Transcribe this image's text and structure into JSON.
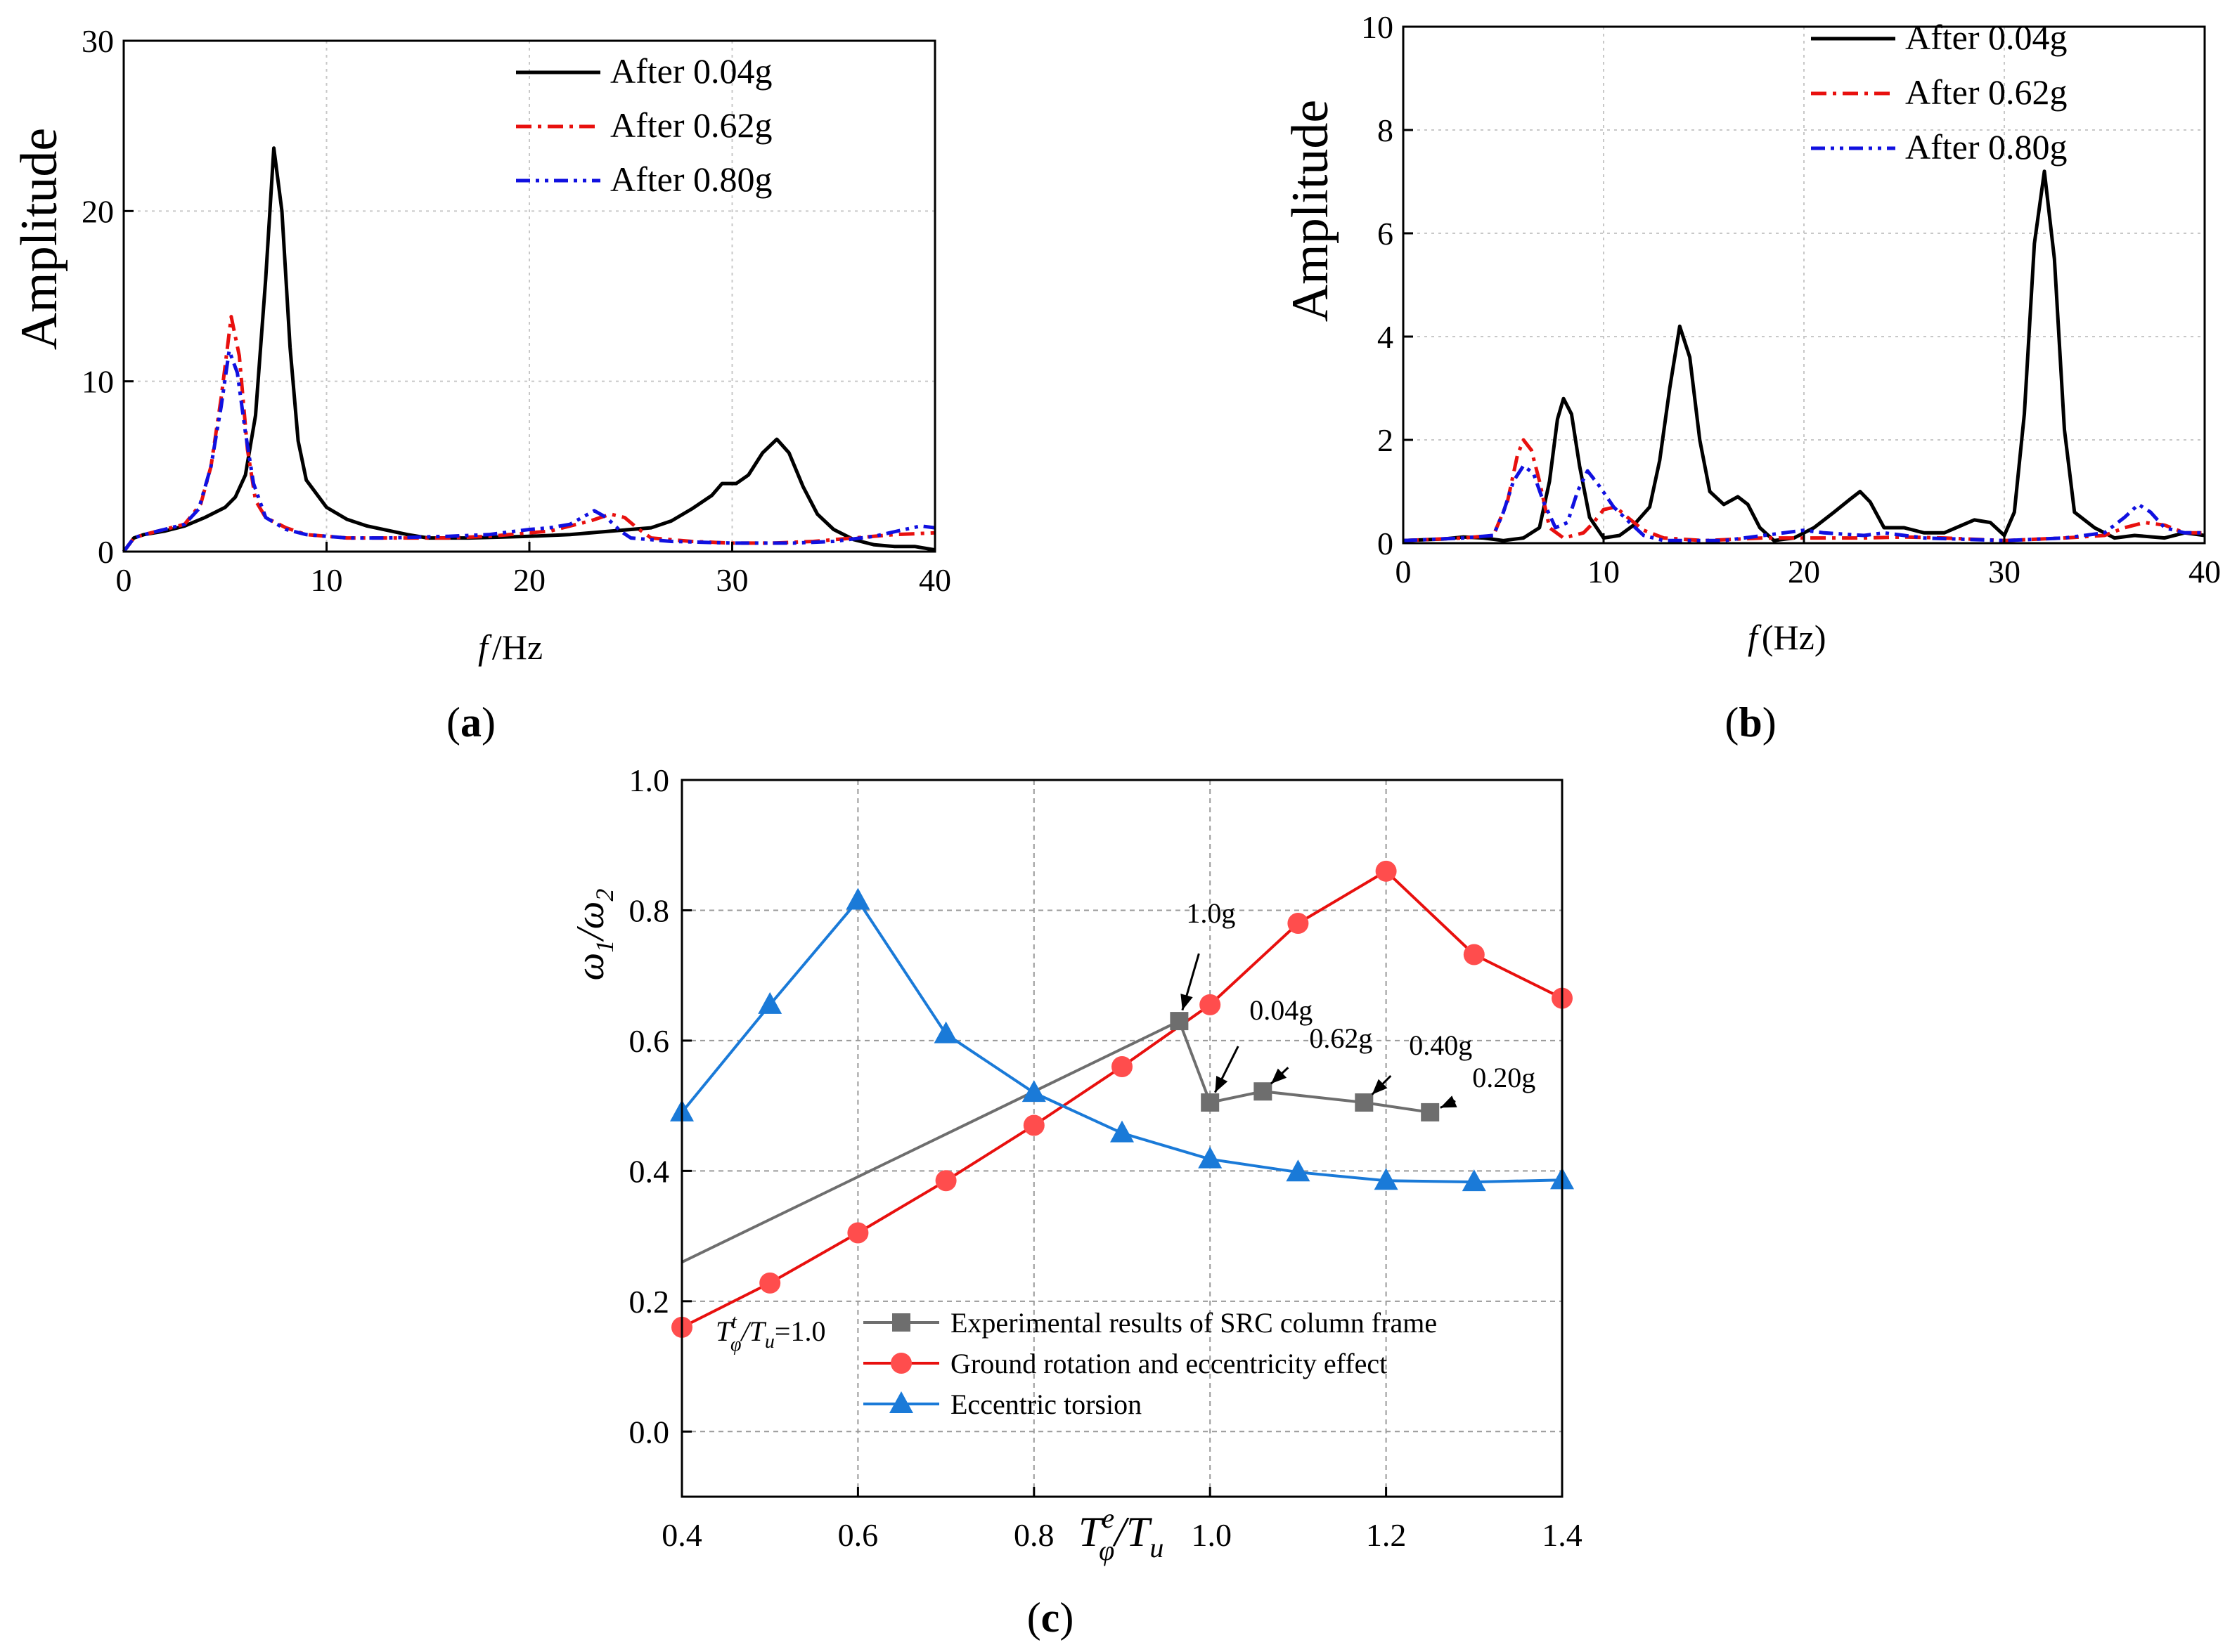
{
  "colors": {
    "black": "#000000",
    "red": "#e8100e",
    "blue": "#1010e0",
    "gray": "#6e6e6e",
    "red_marker": "#ff4d4d",
    "blue_marker": "#1a7ad8"
  },
  "chart_data": [
    {
      "id": "a",
      "type": "line",
      "panel_label": "(a)",
      "title": "",
      "ylabel": "Amplitude",
      "xlabel": "/Hz",
      "xlabel_symbol": "f",
      "xlim": [
        0,
        40
      ],
      "ylim": [
        0,
        30
      ],
      "xticks": [
        0,
        10,
        20,
        30,
        40
      ],
      "yticks": [
        0,
        10,
        20,
        30
      ],
      "grid": true,
      "legend_position": "top-right",
      "series": [
        {
          "name": "After 0.04g",
          "color": "#000000",
          "dash": "solid",
          "points": [
            [
              0,
              0
            ],
            [
              0.5,
              0.8
            ],
            [
              1,
              1.0
            ],
            [
              2,
              1.2
            ],
            [
              3,
              1.5
            ],
            [
              4,
              2.0
            ],
            [
              5,
              2.6
            ],
            [
              5.5,
              3.2
            ],
            [
              6,
              4.5
            ],
            [
              6.5,
              8
            ],
            [
              7,
              16
            ],
            [
              7.4,
              23.7
            ],
            [
              7.8,
              20
            ],
            [
              8.2,
              12
            ],
            [
              8.6,
              6.5
            ],
            [
              9,
              4.2
            ],
            [
              10,
              2.6
            ],
            [
              11,
              1.9
            ],
            [
              12,
              1.5
            ],
            [
              14,
              1.0
            ],
            [
              15,
              0.8
            ],
            [
              17,
              0.8
            ],
            [
              20,
              0.9
            ],
            [
              22,
              1.0
            ],
            [
              24,
              1.2
            ],
            [
              26,
              1.4
            ],
            [
              27,
              1.8
            ],
            [
              28,
              2.5
            ],
            [
              29,
              3.3
            ],
            [
              29.5,
              4.0
            ],
            [
              30.2,
              4.0
            ],
            [
              30.8,
              4.5
            ],
            [
              31.5,
              5.8
            ],
            [
              32.2,
              6.6
            ],
            [
              32.8,
              5.8
            ],
            [
              33.5,
              3.8
            ],
            [
              34.2,
              2.2
            ],
            [
              35,
              1.3
            ],
            [
              36,
              0.7
            ],
            [
              37,
              0.4
            ],
            [
              38,
              0.3
            ],
            [
              39,
              0.3
            ],
            [
              40,
              0.1
            ]
          ]
        },
        {
          "name": "After 0.62g",
          "color": "#e8100e",
          "dash": "dashdot",
          "points": [
            [
              0,
              0
            ],
            [
              0.5,
              0.8
            ],
            [
              1,
              1.0
            ],
            [
              2,
              1.3
            ],
            [
              3,
              1.6
            ],
            [
              3.8,
              2.8
            ],
            [
              4.3,
              5
            ],
            [
              4.8,
              9
            ],
            [
              5.3,
              13.8
            ],
            [
              5.7,
              11.5
            ],
            [
              6.1,
              6
            ],
            [
              6.5,
              3
            ],
            [
              7,
              2
            ],
            [
              8,
              1.4
            ],
            [
              9,
              1.0
            ],
            [
              11,
              0.8
            ],
            [
              13,
              0.8
            ],
            [
              16,
              0.8
            ],
            [
              18,
              0.9
            ],
            [
              20,
              1.1
            ],
            [
              21,
              1.2
            ],
            [
              22,
              1.5
            ],
            [
              23,
              1.8
            ],
            [
              24,
              2.2
            ],
            [
              24.7,
              2.0
            ],
            [
              25.3,
              1.4
            ],
            [
              26,
              0.8
            ],
            [
              28,
              0.6
            ],
            [
              30,
              0.5
            ],
            [
              32,
              0.5
            ],
            [
              34,
              0.6
            ],
            [
              36,
              0.8
            ],
            [
              38,
              1.0
            ],
            [
              40,
              1.1
            ]
          ]
        },
        {
          "name": "After 0.80g",
          "color": "#1010e0",
          "dash": "dashdotdot",
          "points": [
            [
              0,
              0
            ],
            [
              0.5,
              0.8
            ],
            [
              1,
              1.0
            ],
            [
              2,
              1.3
            ],
            [
              3,
              1.6
            ],
            [
              3.7,
              2.5
            ],
            [
              4.3,
              5
            ],
            [
              4.8,
              8.5
            ],
            [
              5.2,
              11.8
            ],
            [
              5.6,
              10.5
            ],
            [
              6,
              7
            ],
            [
              6.4,
              4
            ],
            [
              7,
              2
            ],
            [
              8,
              1.3
            ],
            [
              9,
              1.0
            ],
            [
              11,
              0.8
            ],
            [
              13,
              0.8
            ],
            [
              16,
              0.9
            ],
            [
              18,
              1.0
            ],
            [
              20,
              1.3
            ],
            [
              21,
              1.4
            ],
            [
              22,
              1.6
            ],
            [
              23.2,
              2.4
            ],
            [
              23.8,
              2.0
            ],
            [
              24.5,
              1.2
            ],
            [
              25,
              0.8
            ],
            [
              27,
              0.6
            ],
            [
              30,
              0.5
            ],
            [
              33,
              0.5
            ],
            [
              35,
              0.6
            ],
            [
              37,
              0.9
            ],
            [
              38.5,
              1.3
            ],
            [
              39.3,
              1.5
            ],
            [
              40,
              1.4
            ]
          ]
        }
      ]
    },
    {
      "id": "b",
      "type": "line",
      "panel_label": "(b)",
      "title": "",
      "ylabel": "Amplitude",
      "xlabel": "(Hz)",
      "xlabel_symbol": "f",
      "xlim": [
        0,
        40
      ],
      "ylim": [
        0,
        10
      ],
      "xticks": [
        0,
        10,
        20,
        30,
        40
      ],
      "yticks": [
        0,
        2,
        4,
        6,
        8,
        10
      ],
      "grid": true,
      "legend_position": "top-right",
      "series": [
        {
          "name": "After 0.04g",
          "color": "#000000",
          "dash": "solid",
          "points": [
            [
              0,
              0.05
            ],
            [
              2,
              0.08
            ],
            [
              3,
              0.12
            ],
            [
              4,
              0.1
            ],
            [
              5,
              0.05
            ],
            [
              6,
              0.1
            ],
            [
              6.8,
              0.3
            ],
            [
              7.3,
              1.2
            ],
            [
              7.7,
              2.4
            ],
            [
              8,
              2.8
            ],
            [
              8.4,
              2.5
            ],
            [
              8.8,
              1.5
            ],
            [
              9.3,
              0.5
            ],
            [
              10,
              0.1
            ],
            [
              10.8,
              0.15
            ],
            [
              11.5,
              0.35
            ],
            [
              12.3,
              0.7
            ],
            [
              12.8,
              1.6
            ],
            [
              13.3,
              3.0
            ],
            [
              13.8,
              4.2
            ],
            [
              14.3,
              3.6
            ],
            [
              14.8,
              2.0
            ],
            [
              15.3,
              1.0
            ],
            [
              16,
              0.75
            ],
            [
              16.7,
              0.9
            ],
            [
              17.2,
              0.75
            ],
            [
              17.8,
              0.3
            ],
            [
              18.5,
              0.05
            ],
            [
              19.5,
              0.1
            ],
            [
              20.5,
              0.3
            ],
            [
              21.5,
              0.6
            ],
            [
              22.3,
              0.85
            ],
            [
              22.8,
              1.0
            ],
            [
              23.3,
              0.8
            ],
            [
              24,
              0.3
            ],
            [
              25,
              0.3
            ],
            [
              26,
              0.2
            ],
            [
              27,
              0.2
            ],
            [
              28.5,
              0.45
            ],
            [
              29.3,
              0.4
            ],
            [
              30,
              0.15
            ],
            [
              30.5,
              0.6
            ],
            [
              31,
              2.5
            ],
            [
              31.5,
              5.8
            ],
            [
              32,
              7.2
            ],
            [
              32.5,
              5.5
            ],
            [
              33,
              2.2
            ],
            [
              33.5,
              0.6
            ],
            [
              34.5,
              0.3
            ],
            [
              35.5,
              0.1
            ],
            [
              36.5,
              0.15
            ],
            [
              38,
              0.1
            ],
            [
              39,
              0.2
            ],
            [
              40,
              0.15
            ]
          ]
        },
        {
          "name": "After 0.62g",
          "color": "#e8100e",
          "dash": "dashdot",
          "points": [
            [
              0,
              0.05
            ],
            [
              3,
              0.1
            ],
            [
              4.5,
              0.15
            ],
            [
              5.2,
              0.8
            ],
            [
              5.7,
              1.7
            ],
            [
              6,
              2.0
            ],
            [
              6.4,
              1.8
            ],
            [
              6.8,
              1.2
            ],
            [
              7.3,
              0.3
            ],
            [
              8,
              0.1
            ],
            [
              9,
              0.2
            ],
            [
              9.5,
              0.4
            ],
            [
              10,
              0.65
            ],
            [
              10.6,
              0.7
            ],
            [
              11.2,
              0.5
            ],
            [
              12,
              0.25
            ],
            [
              13,
              0.1
            ],
            [
              15,
              0.05
            ],
            [
              18,
              0.1
            ],
            [
              20,
              0.1
            ],
            [
              23,
              0.1
            ],
            [
              25,
              0.12
            ],
            [
              27,
              0.1
            ],
            [
              30,
              0.05
            ],
            [
              33,
              0.1
            ],
            [
              35,
              0.15
            ],
            [
              36,
              0.3
            ],
            [
              37,
              0.4
            ],
            [
              38,
              0.35
            ],
            [
              39,
              0.2
            ],
            [
              40,
              0.2
            ]
          ]
        },
        {
          "name": "After 0.80g",
          "color": "#1010e0",
          "dash": "dashdotdot",
          "points": [
            [
              0,
              0.05
            ],
            [
              3,
              0.1
            ],
            [
              4.5,
              0.15
            ],
            [
              5,
              0.6
            ],
            [
              5.5,
              1.2
            ],
            [
              6,
              1.5
            ],
            [
              6.5,
              1.35
            ],
            [
              7,
              0.8
            ],
            [
              7.6,
              0.3
            ],
            [
              8.2,
              0.4
            ],
            [
              8.7,
              1.0
            ],
            [
              9.2,
              1.4
            ],
            [
              9.8,
              1.1
            ],
            [
              10.5,
              0.7
            ],
            [
              11.3,
              0.4
            ],
            [
              12,
              0.15
            ],
            [
              13,
              0.05
            ],
            [
              16,
              0.05
            ],
            [
              18,
              0.15
            ],
            [
              20,
              0.25
            ],
            [
              21,
              0.2
            ],
            [
              23,
              0.15
            ],
            [
              24,
              0.2
            ],
            [
              26,
              0.1
            ],
            [
              30,
              0.05
            ],
            [
              33,
              0.1
            ],
            [
              35,
              0.2
            ],
            [
              36,
              0.5
            ],
            [
              36.7,
              0.75
            ],
            [
              37.3,
              0.6
            ],
            [
              38,
              0.3
            ],
            [
              39,
              0.2
            ],
            [
              40,
              0.2
            ]
          ]
        }
      ]
    },
    {
      "id": "c",
      "type": "line",
      "panel_label": "(c)",
      "title": "",
      "ylabel": "ω1/ω2",
      "xlabel": "Tφe/Tu",
      "xlim": [
        0.4,
        1.4
      ],
      "ylim": [
        -0.1,
        1.0
      ],
      "xticks": [
        0.4,
        0.6,
        0.8,
        1.0,
        1.2,
        1.4
      ],
      "ytick_labels_values": [
        0.0,
        0.2,
        0.4,
        0.6,
        0.8,
        1.0
      ],
      "grid": true,
      "legend_position": "bottom-center",
      "series": [
        {
          "name": "Experimental results of SRC column frame",
          "color": "#6e6e6e",
          "marker": "square",
          "x": [
            0.4,
            0.965,
            1.0,
            1.06,
            1.175,
            1.25
          ],
          "y": [
            0.26,
            0.63,
            0.505,
            0.522,
            0.505,
            0.49
          ],
          "marker_indices": [
            1,
            2,
            3,
            4,
            5
          ]
        },
        {
          "name": "Ground rotation and eccentricity effect",
          "color": "#e8100e",
          "marker": "circle",
          "x": [
            0.4,
            0.5,
            0.6,
            0.7,
            0.8,
            0.9,
            1.0,
            1.1,
            1.2,
            1.3,
            1.4
          ],
          "y": [
            0.16,
            0.228,
            0.305,
            0.385,
            0.47,
            0.56,
            0.655,
            0.78,
            0.86,
            0.732,
            0.665
          ]
        },
        {
          "name": "Eccentric torsion",
          "color": "#1a7ad8",
          "marker": "triangle",
          "x": [
            0.4,
            0.5,
            0.6,
            0.7,
            0.8,
            0.9,
            1.0,
            1.1,
            1.2,
            1.3,
            1.4
          ],
          "y": [
            0.49,
            0.655,
            0.815,
            0.61,
            0.52,
            0.458,
            0.418,
            0.398,
            0.385,
            0.383,
            0.386
          ]
        }
      ],
      "annotations": [
        {
          "text": "1.0g",
          "x": 0.965,
          "y": 0.63
        },
        {
          "text": "0.04g",
          "x": 1.0,
          "y": 0.505
        },
        {
          "text": "0.62g",
          "x": 1.06,
          "y": 0.522
        },
        {
          "text": "0.40g",
          "x": 1.175,
          "y": 0.505
        },
        {
          "text": "0.20g",
          "x": 1.25,
          "y": 0.49
        }
      ],
      "inline_label": "Tφt/Tu=1.0"
    }
  ]
}
